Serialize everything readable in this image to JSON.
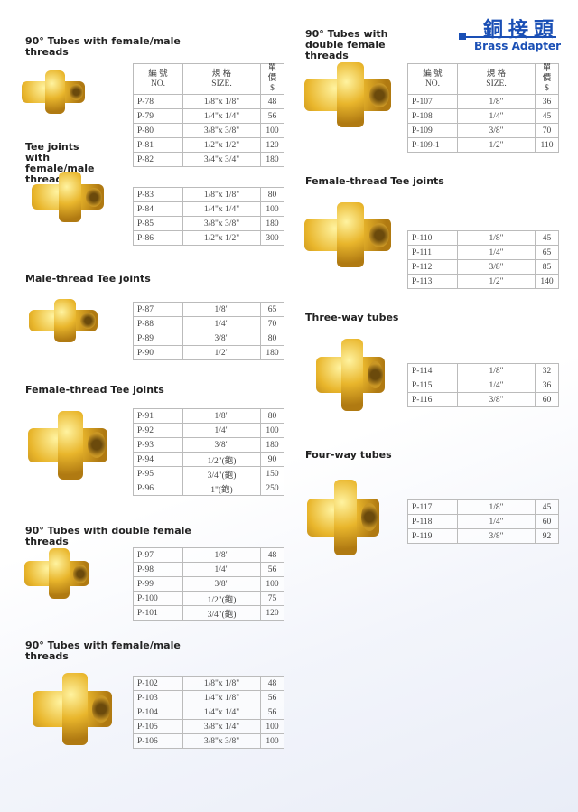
{
  "header": {
    "title_cn": "銅接頭",
    "title_en": "Brass Adapter",
    "accent": "#1a4fb5"
  },
  "table_header": {
    "no_cn": "編 號",
    "no_en": "NO.",
    "size_cn": "規 格",
    "size_en": "SIZE.",
    "price_cn": "單 價",
    "price_en": "$"
  },
  "sections": [
    {
      "title": "90° Tubes with female/male threads",
      "show_header": true,
      "rows": [
        [
          "P-78",
          "1/8\"x 1/8\"",
          "48"
        ],
        [
          "P-79",
          "1/4\"x 1/4\"",
          "56"
        ],
        [
          "P-80",
          "3/8\"x 3/8\"",
          "100"
        ],
        [
          "P-81",
          "1/2\"x 1/2\"",
          "120"
        ],
        [
          "P-82",
          "3/4\"x 3/4\"",
          "180"
        ]
      ]
    },
    {
      "title": "Tee joints with female/male threads",
      "show_header": false,
      "rows": [
        [
          "P-83",
          "1/8\"x 1/8\"",
          "80"
        ],
        [
          "P-84",
          "1/4\"x 1/4\"",
          "100"
        ],
        [
          "P-85",
          "3/8\"x 3/8\"",
          "180"
        ],
        [
          "P-86",
          "1/2\"x 1/2\"",
          "300"
        ]
      ]
    },
    {
      "title": "Male-thread Tee joints",
      "show_header": false,
      "rows": [
        [
          "P-87",
          "1/8\"",
          "65"
        ],
        [
          "P-88",
          "1/4\"",
          "70"
        ],
        [
          "P-89",
          "3/8\"",
          "80"
        ],
        [
          "P-90",
          "1/2\"",
          "180"
        ]
      ]
    },
    {
      "title": "Female-thread Tee joints",
      "show_header": false,
      "rows": [
        [
          "P-91",
          "1/8\"",
          "80"
        ],
        [
          "P-92",
          "1/4\"",
          "100"
        ],
        [
          "P-93",
          "3/8\"",
          "180"
        ],
        [
          "P-94",
          "1/2\"(鉋)",
          "90"
        ],
        [
          "P-95",
          "3/4\"(鉋)",
          "150"
        ],
        [
          "P-96",
          "1\"(鉋)",
          "250"
        ]
      ]
    },
    {
      "title": "90° Tubes with double female threads",
      "show_header": false,
      "rows": [
        [
          "P-97",
          "1/8\"",
          "48"
        ],
        [
          "P-98",
          "1/4\"",
          "56"
        ],
        [
          "P-99",
          "3/8\"",
          "100"
        ],
        [
          "P-100",
          "1/2\"(鉋)",
          "75"
        ],
        [
          "P-101",
          "3/4\"(鉋)",
          "120"
        ]
      ]
    },
    {
      "title": "90° Tubes with female/male threads",
      "show_header": false,
      "rows": [
        [
          "P-102",
          "1/8\"x 1/8\"",
          "48"
        ],
        [
          "P-103",
          "1/4\"x 1/8\"",
          "56"
        ],
        [
          "P-104",
          "1/4\"x 1/4\"",
          "56"
        ],
        [
          "P-105",
          "3/8\"x 1/4\"",
          "100"
        ],
        [
          "P-106",
          "3/8\"x 3/8\"",
          "100"
        ]
      ]
    },
    {
      "title": "90° Tubes with double female threads",
      "show_header": true,
      "rows": [
        [
          "P-107",
          "1/8\"",
          "36"
        ],
        [
          "P-108",
          "1/4\"",
          "45"
        ],
        [
          "P-109",
          "3/8\"",
          "70"
        ],
        [
          "P-109-1",
          "1/2\"",
          "110"
        ]
      ]
    },
    {
      "title": "Female-thread Tee joints",
      "show_header": false,
      "rows": [
        [
          "P-110",
          "1/8\"",
          "45"
        ],
        [
          "P-111",
          "1/4\"",
          "65"
        ],
        [
          "P-112",
          "3/8\"",
          "85"
        ],
        [
          "P-113",
          "1/2\"",
          "140"
        ]
      ]
    },
    {
      "title": "Three-way tubes",
      "show_header": false,
      "rows": [
        [
          "P-114",
          "1/8\"",
          "32"
        ],
        [
          "P-115",
          "1/4\"",
          "36"
        ],
        [
          "P-116",
          "3/8\"",
          "60"
        ]
      ]
    },
    {
      "title": "Four-way tubes",
      "show_header": false,
      "rows": [
        [
          "P-117",
          "1/8\"",
          "45"
        ],
        [
          "P-118",
          "1/4\"",
          "60"
        ],
        [
          "P-119",
          "3/8\"",
          "92"
        ]
      ]
    }
  ]
}
